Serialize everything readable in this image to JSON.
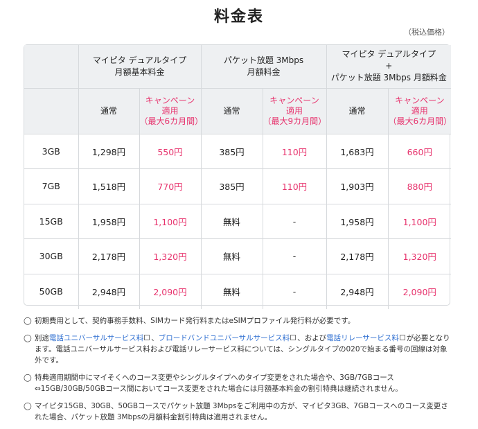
{
  "title": "料金表",
  "tax_note": "（税込価格）",
  "header": {
    "group1_line1": "マイピタ デュアルタイプ",
    "group1_line2": "月額基本料金",
    "group2_line1": "パケット放題 3Mbps",
    "group2_line2": "月額料金",
    "group3_line1": "マイピタ デュアルタイプ",
    "group3_line2": "+",
    "group3_line3": "パケット放題 3Mbps 月額料金",
    "normal": "通常",
    "camp_line1": "キャンペーン",
    "camp_line2": "適用",
    "camp6": "（最大6カ月間）",
    "camp9": "（最大9カ月間）"
  },
  "rows": [
    {
      "plan": "3GB",
      "c1": "1,298円",
      "c2": "550円",
      "c3": "385円",
      "c4": "110円",
      "c5": "1,683円",
      "c6": "660円"
    },
    {
      "plan": "7GB",
      "c1": "1,518円",
      "c2": "770円",
      "c3": "385円",
      "c4": "110円",
      "c5": "1,903円",
      "c6": "880円"
    },
    {
      "plan": "15GB",
      "c1": "1,958円",
      "c2": "1,100円",
      "c3": "無料",
      "c4": "-",
      "c5": "1,958円",
      "c6": "1,100円"
    },
    {
      "plan": "30GB",
      "c1": "2,178円",
      "c2": "1,320円",
      "c3": "無料",
      "c4": "-",
      "c5": "2,178円",
      "c6": "1,320円"
    },
    {
      "plan": "50GB",
      "c1": "2,948円",
      "c2": "2,090円",
      "c3": "無料",
      "c4": "-",
      "c5": "2,948円",
      "c6": "2,090円"
    }
  ],
  "notes": {
    "bullet": "◯",
    "n1": "初期費用として、契約事務手数料、SIMカード発行料またはeSIMプロファイル発行料が必要です。",
    "n2_a": "別途",
    "n2_link1": "電話ユニバーサルサービス料",
    "n2_sep": "、",
    "n2_link2": "ブロードバンドユニバーサルサービス料",
    "n2_b": "、および",
    "n2_link3": "電話リレーサービス料",
    "n2_c": "が必要となります。電話ユニバーサルサービス料および電話リレーサービス料については、シングルタイプの020で始まる番号の回線は対象外です。",
    "n3": "特典適用期間中にマイそくへのコース変更やシングルタイプへのタイプ変更をされた場合や、3GB/7GBコース⇔15GB/30GB/50GBコース間においてコース変更をされた場合には月額基本料金の割引特典は継続されません。",
    "n4": "マイピタ15GB、30GB、50GBコースでパケット放題 3Mbpsをご利用中の方が、マイピタ3GB、7GBコースへのコース変更された場合、パケット放題 3Mbpsの月額料金割引特典は適用されません。"
  }
}
